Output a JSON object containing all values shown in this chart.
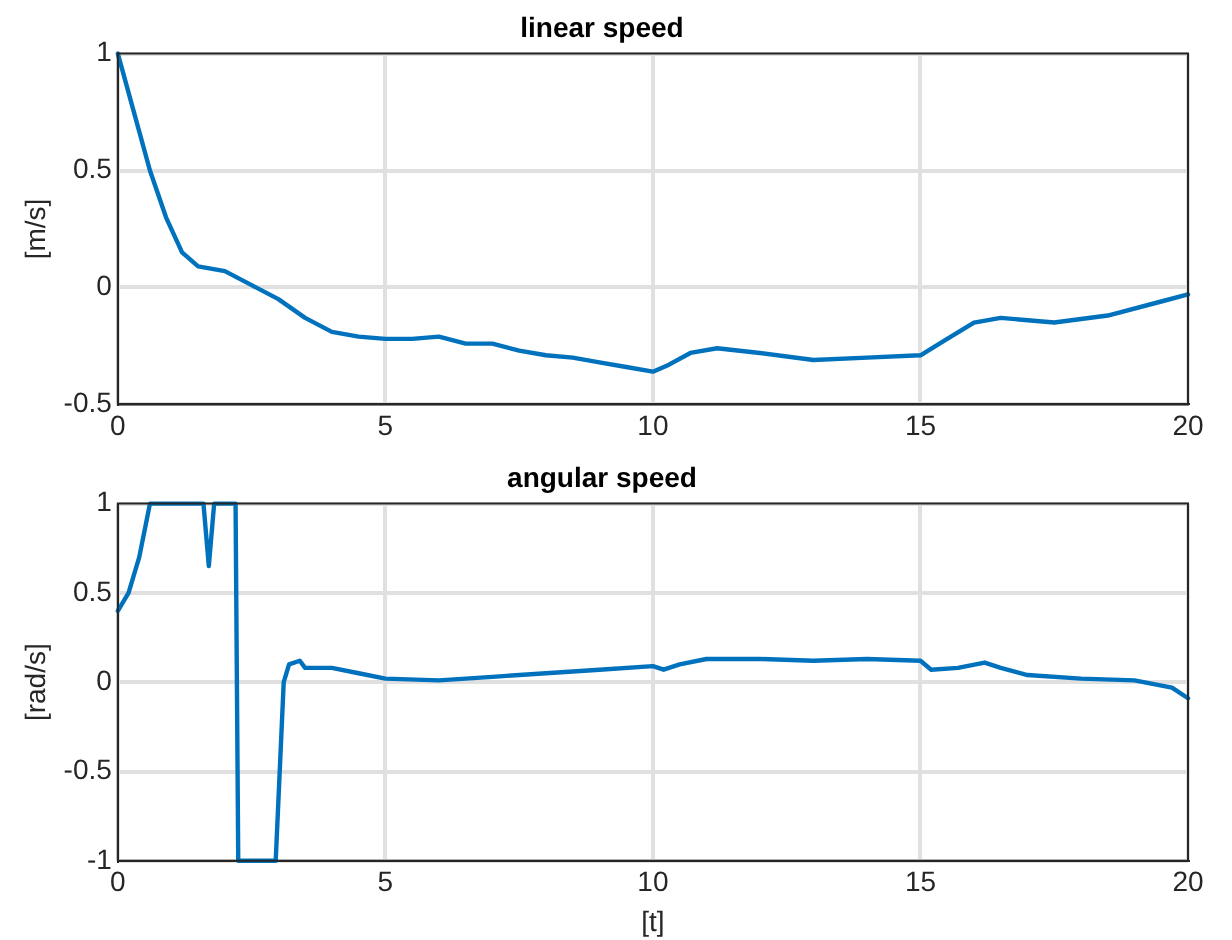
{
  "chart_data": [
    {
      "type": "line",
      "title": "linear speed",
      "ylabel": "[m/s]",
      "xlim": [
        0,
        20
      ],
      "xticks": [
        0,
        5,
        10,
        15,
        20
      ],
      "ylim": [
        -0.5,
        1
      ],
      "yticks": [
        -0.5,
        0,
        0.5,
        1
      ],
      "grid": true,
      "legend": false,
      "marker": "none",
      "line_style": "solid",
      "series": [
        {
          "color": "#0072bd",
          "x": [
            0,
            0.3,
            0.6,
            0.9,
            1.2,
            1.5,
            2.0,
            2.5,
            3.0,
            3.5,
            4.0,
            4.5,
            5.0,
            5.5,
            6.0,
            6.5,
            7.0,
            7.5,
            8.0,
            8.5,
            9.0,
            9.5,
            10.0,
            10.3,
            10.7,
            11.2,
            12.0,
            13.0,
            14.0,
            15.0,
            15.5,
            16.0,
            16.5,
            17.5,
            18.5,
            19.5,
            20
          ],
          "values": [
            1.0,
            0.75,
            0.5,
            0.3,
            0.15,
            0.09,
            0.07,
            0.01,
            -0.05,
            -0.13,
            -0.19,
            -0.21,
            -0.22,
            -0.22,
            -0.21,
            -0.24,
            -0.24,
            -0.27,
            -0.29,
            -0.3,
            -0.32,
            -0.34,
            -0.36,
            -0.33,
            -0.28,
            -0.26,
            -0.28,
            -0.31,
            -0.3,
            -0.29,
            -0.22,
            -0.15,
            -0.13,
            -0.15,
            -0.12,
            -0.06,
            -0.03
          ]
        }
      ]
    },
    {
      "type": "line",
      "title": "angular speed",
      "xlabel": "[t]",
      "ylabel": "[rad/s]",
      "xlim": [
        0,
        20
      ],
      "xticks": [
        0,
        5,
        10,
        15,
        20
      ],
      "ylim": [
        -1,
        1
      ],
      "yticks": [
        -1,
        -0.5,
        0,
        0.5,
        1
      ],
      "grid": true,
      "legend": false,
      "marker": "none",
      "line_style": "solid",
      "series": [
        {
          "color": "#0072bd",
          "x": [
            0,
            0.2,
            0.4,
            0.6,
            1.6,
            1.7,
            1.8,
            2.2,
            2.25,
            2.95,
            3.1,
            3.2,
            3.4,
            3.5,
            4.0,
            4.5,
            5.0,
            6.0,
            7.0,
            8.0,
            9.0,
            10.0,
            10.2,
            10.5,
            11.0,
            12.0,
            13.0,
            14.0,
            15.0,
            15.2,
            15.7,
            16.2,
            16.5,
            17.0,
            18.0,
            19.0,
            19.7,
            20
          ],
          "values": [
            0.4,
            0.5,
            0.7,
            1.0,
            1.0,
            0.65,
            1.0,
            1.0,
            -1.0,
            -1.0,
            0.0,
            0.1,
            0.12,
            0.08,
            0.08,
            0.05,
            0.02,
            0.01,
            0.03,
            0.05,
            0.07,
            0.09,
            0.07,
            0.1,
            0.13,
            0.13,
            0.12,
            0.13,
            0.12,
            0.07,
            0.08,
            0.11,
            0.08,
            0.04,
            0.02,
            0.01,
            -0.03,
            -0.09
          ]
        }
      ]
    }
  ]
}
